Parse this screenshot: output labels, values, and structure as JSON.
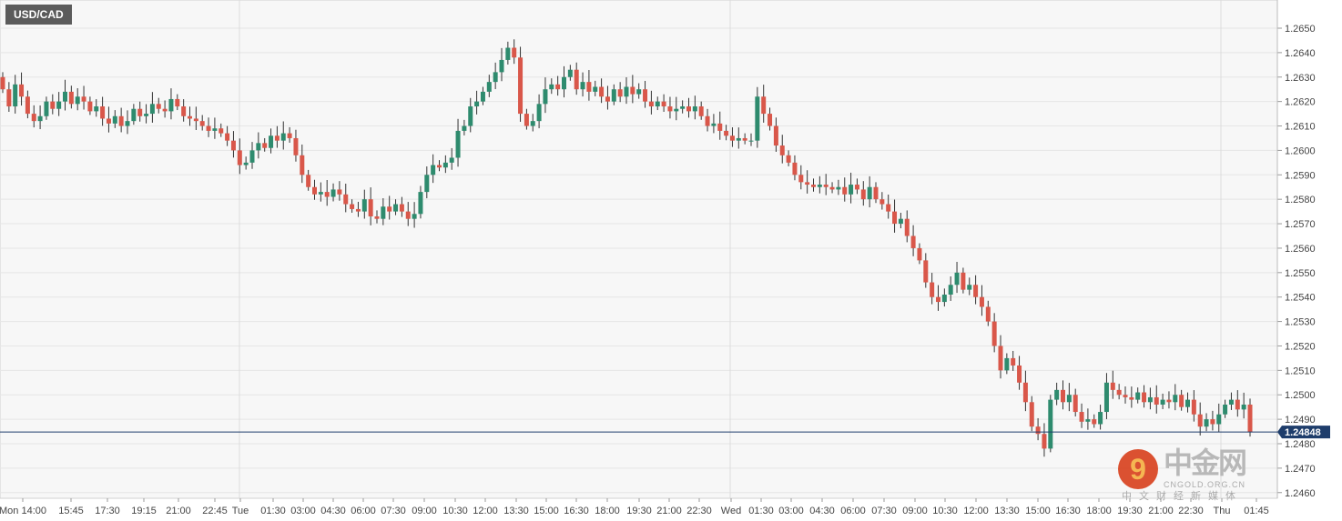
{
  "symbol": "USD/CAD",
  "watermark": {
    "logo_text": "中金网",
    "domain_text": "CNGOLD.ORG.CN",
    "tagline": "中文财经新媒体"
  },
  "colors": {
    "up": "#2e8b6e",
    "down": "#d9574a",
    "price_line": "#1e3d6b",
    "grid": "#e6e6e6",
    "background": "#f7f7f7"
  },
  "chart_data": {
    "type": "candlestick",
    "title": "USD/CAD",
    "ylim": [
      1.2455,
      1.2658
    ],
    "y_ticks": [
      "1.2460",
      "1.2470",
      "1.2480",
      "1.2490",
      "1.2500",
      "1.2510",
      "1.2520",
      "1.2530",
      "1.2540",
      "1.2550",
      "1.2560",
      "1.2570",
      "1.2580",
      "1.2590",
      "1.2600",
      "1.2610",
      "1.2620",
      "1.2630",
      "1.2640",
      "1.2650"
    ],
    "x_ticks": [
      "Mon 14:00",
      "15:45",
      "17:30",
      "19:15",
      "21:00",
      "22:45",
      "Tue",
      "01:30",
      "03:00",
      "04:30",
      "06:00",
      "07:30",
      "09:00",
      "10:30",
      "12:00",
      "13:30",
      "15:00",
      "16:30",
      "18:00",
      "19:30",
      "21:00",
      "22:30",
      "Wed",
      "01:30",
      "03:00",
      "04:30",
      "06:00",
      "07:30",
      "09:00",
      "10:30",
      "12:00",
      "13:30",
      "15:00",
      "16:30",
      "18:00",
      "19:30",
      "21:00",
      "22:30",
      "Thu",
      "01:45"
    ],
    "first_open": 1.263,
    "closes": [
      1.2625,
      1.2618,
      1.2627,
      1.2622,
      1.2615,
      1.2612,
      1.2614,
      1.262,
      1.2617,
      1.262,
      1.2624,
      1.2619,
      1.2622,
      1.262,
      1.2616,
      1.2618,
      1.2613,
      1.2611,
      1.2614,
      1.261,
      1.2612,
      1.2617,
      1.2614,
      1.2615,
      1.2619,
      1.2617,
      1.2616,
      1.2621,
      1.2618,
      1.2614,
      1.2613,
      1.2612,
      1.261,
      1.2608,
      1.2609,
      1.2607,
      1.2604,
      1.26,
      1.2594,
      1.2595,
      1.26,
      1.2603,
      1.2601,
      1.2606,
      1.2604,
      1.2607,
      1.2605,
      1.2598,
      1.259,
      1.2585,
      1.2582,
      1.2583,
      1.2581,
      1.2584,
      1.2582,
      1.2578,
      1.2576,
      1.2575,
      1.258,
      1.2573,
      1.2572,
      1.2577,
      1.2575,
      1.2578,
      1.2575,
      1.2572,
      1.2574,
      1.2583,
      1.259,
      1.2594,
      1.2593,
      1.2595,
      1.2597,
      1.2608,
      1.261,
      1.2618,
      1.262,
      1.2624,
      1.2628,
      1.2632,
      1.2637,
      1.2642,
      1.2638,
      1.2615,
      1.261,
      1.2612,
      1.2619,
      1.2625,
      1.2627,
      1.2625,
      1.263,
      1.2633,
      1.2625,
      1.2628,
      1.2624,
      1.2626,
      1.2622,
      1.262,
      1.2625,
      1.2622,
      1.2626,
      1.2623,
      1.2625,
      1.262,
      1.2618,
      1.262,
      1.2618,
      1.2616,
      1.2617,
      1.2618,
      1.2616,
      1.2618,
      1.2614,
      1.261,
      1.2611,
      1.2608,
      1.2606,
      1.2604,
      1.2605,
      1.2604,
      1.2604,
      1.2622,
      1.2615,
      1.261,
      1.2602,
      1.2598,
      1.2595,
      1.259,
      1.2587,
      1.2586,
      1.2585,
      1.2586,
      1.2585,
      1.2584,
      1.2585,
      1.2582,
      1.2586,
      1.2584,
      1.258,
      1.2585,
      1.258,
      1.2578,
      1.2575,
      1.257,
      1.2572,
      1.2565,
      1.256,
      1.2555,
      1.2546,
      1.254,
      1.2538,
      1.2541,
      1.2545,
      1.255,
      1.2543,
      1.2545,
      1.254,
      1.2536,
      1.253,
      1.252,
      1.251,
      1.2515,
      1.2512,
      1.2505,
      1.2497,
      1.2487,
      1.2484,
      1.2478,
      1.2498,
      1.2502,
      1.2497,
      1.25,
      1.2493,
      1.2489,
      1.249,
      1.2488,
      1.2493,
      1.2505,
      1.2502,
      1.25,
      1.2499,
      1.2498,
      1.2501,
      1.2497,
      1.2499,
      1.2496,
      1.2498,
      1.2497,
      1.25,
      1.2495,
      1.2498,
      1.2492,
      1.2487,
      1.249,
      1.2488,
      1.2492,
      1.2496,
      1.2498,
      1.2494,
      1.2496,
      1.24848
    ],
    "current_price": "1.24848"
  }
}
